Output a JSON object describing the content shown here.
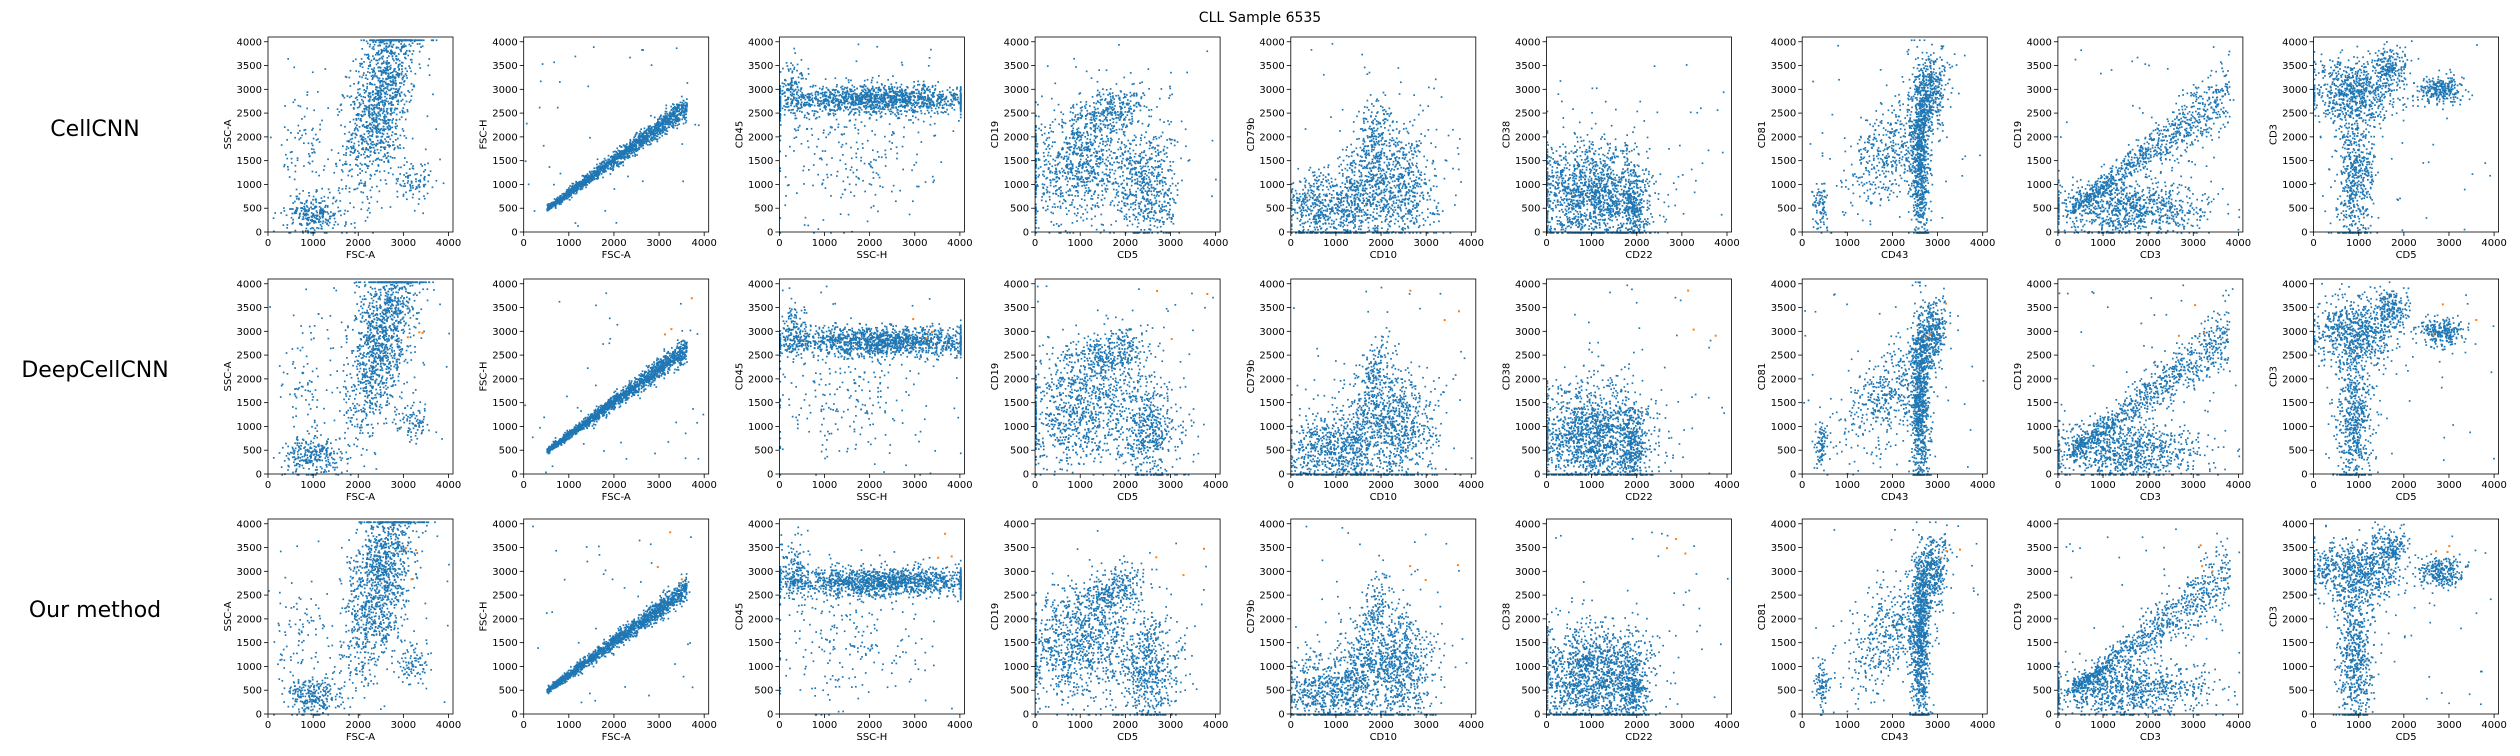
{
  "title": "CLL Sample 6535",
  "colors": {
    "main": "#1f77b4",
    "highlight": "#ff7f0e",
    "axis": "#000000"
  },
  "row_labels": [
    "CellCNN",
    "DeepCellCNN",
    "Our method"
  ],
  "chart_data": {
    "type": "scatter",
    "title": "CLL Sample 6535",
    "grid": false,
    "rows": [
      "CellCNN",
      "DeepCellCNN",
      "Our method"
    ],
    "xlim": [
      0,
      4100
    ],
    "ylim": [
      0,
      4100
    ],
    "x_ticks": [
      "0",
      "1000",
      "2000",
      "3000",
      "4000"
    ],
    "y_ticks": [
      "0",
      "500",
      "1000",
      "1500",
      "2000",
      "2500",
      "3000",
      "3500",
      "4000"
    ],
    "panels": [
      {
        "xlabel": "FSC-A",
        "ylabel": "SSC-A",
        "clusters": [
          {
            "cx": 2500,
            "cy": 2900,
            "sx": 380,
            "sy": 1000,
            "corr": 0.5,
            "w": 0.75
          },
          {
            "cx": 1000,
            "cy": 400,
            "sx": 300,
            "sy": 200,
            "corr": 0,
            "w": 0.15
          },
          {
            "cx": 800,
            "cy": 1700,
            "sx": 300,
            "sy": 700,
            "corr": 0,
            "w": 0.05
          },
          {
            "cx": 3200,
            "cy": 1100,
            "sx": 200,
            "sy": 200,
            "corr": 0,
            "w": 0.05
          }
        ]
      },
      {
        "xlabel": "FSC-A",
        "ylabel": "FSC-H",
        "line": {
          "x0": 500,
          "y0": 500,
          "x1": 3600,
          "y1": 2650
        },
        "spread": 100
      },
      {
        "xlabel": "SSC-H",
        "ylabel": "CD45",
        "clusters": [
          {
            "cx": 2200,
            "cy": 2800,
            "sx": 1100,
            "sy": 150,
            "corr": 0,
            "w": 0.8
          },
          {
            "cx": 300,
            "cy": 3000,
            "sx": 150,
            "sy": 300,
            "corr": 0,
            "w": 0.08
          },
          {
            "cx": 1500,
            "cy": 1600,
            "sx": 900,
            "sy": 700,
            "corr": 0,
            "w": 0.12
          }
        ]
      },
      {
        "xlabel": "CD5",
        "ylabel": "CD19",
        "clusters": [
          {
            "cx": 1000,
            "cy": 1500,
            "sx": 650,
            "sy": 650,
            "corr": 0.2,
            "w": 0.55
          },
          {
            "cx": 2500,
            "cy": 900,
            "sx": 350,
            "sy": 600,
            "corr": 0,
            "w": 0.3
          },
          {
            "cx": 1700,
            "cy": 2600,
            "sx": 400,
            "sy": 250,
            "corr": 0.4,
            "w": 0.15
          }
        ]
      },
      {
        "xlabel": "CD10",
        "ylabel": "CD79b",
        "clusters": [
          {
            "cx": 2300,
            "cy": 1000,
            "sx": 450,
            "sy": 600,
            "corr": 0,
            "w": 0.45
          },
          {
            "cx": 700,
            "cy": 500,
            "sx": 450,
            "sy": 400,
            "corr": 0,
            "w": 0.3
          },
          {
            "cx": 1850,
            "cy": 2000,
            "sx": 180,
            "sy": 450,
            "corr": 0.3,
            "w": 0.1
          },
          {
            "cx": 1400,
            "cy": 700,
            "sx": 250,
            "sy": 500,
            "corr": 0,
            "w": 0.15
          }
        ]
      },
      {
        "xlabel": "CD22",
        "ylabel": "CD38",
        "clusters": [
          {
            "cx": 1000,
            "cy": 800,
            "sx": 650,
            "sy": 550,
            "corr": 0,
            "w": 0.85
          },
          {
            "cx": 1900,
            "cy": 500,
            "sx": 150,
            "sy": 400,
            "corr": 0,
            "w": 0.15
          }
        ]
      },
      {
        "xlabel": "CD43",
        "ylabel": "CD81",
        "clusters": [
          {
            "cx": 2600,
            "cy": 1500,
            "sx": 100,
            "sy": 900,
            "corr": 0,
            "w": 0.45
          },
          {
            "cx": 2800,
            "cy": 2900,
            "sx": 200,
            "sy": 400,
            "corr": 0.4,
            "w": 0.25
          },
          {
            "cx": 1900,
            "cy": 1700,
            "sx": 500,
            "sy": 600,
            "corr": 0.5,
            "w": 0.25
          },
          {
            "cx": 400,
            "cy": 600,
            "sx": 80,
            "sy": 250,
            "corr": 0,
            "w": 0.05
          }
        ]
      },
      {
        "xlabel": "CD3",
        "ylabel": "CD19",
        "line": {
          "x0": 300,
          "y0": 500,
          "x1": 3800,
          "y1": 2950
        },
        "spread": 300,
        "clusters": [
          {
            "cx": 1500,
            "cy": 500,
            "sx": 900,
            "sy": 300,
            "corr": 0,
            "w": 0.5
          }
        ]
      },
      {
        "xlabel": "CD5",
        "ylabel": "CD3",
        "clusters": [
          {
            "cx": 900,
            "cy": 3000,
            "sx": 500,
            "sy": 350,
            "corr": 0,
            "w": 0.4
          },
          {
            "cx": 900,
            "cy": 1200,
            "sx": 200,
            "sy": 800,
            "corr": 0,
            "w": 0.35
          },
          {
            "cx": 2800,
            "cy": 3000,
            "sx": 250,
            "sy": 150,
            "corr": 0,
            "w": 0.15
          },
          {
            "cx": 1700,
            "cy": 3500,
            "sx": 200,
            "sy": 200,
            "corr": 0,
            "w": 0.1
          }
        ]
      }
    ]
  }
}
